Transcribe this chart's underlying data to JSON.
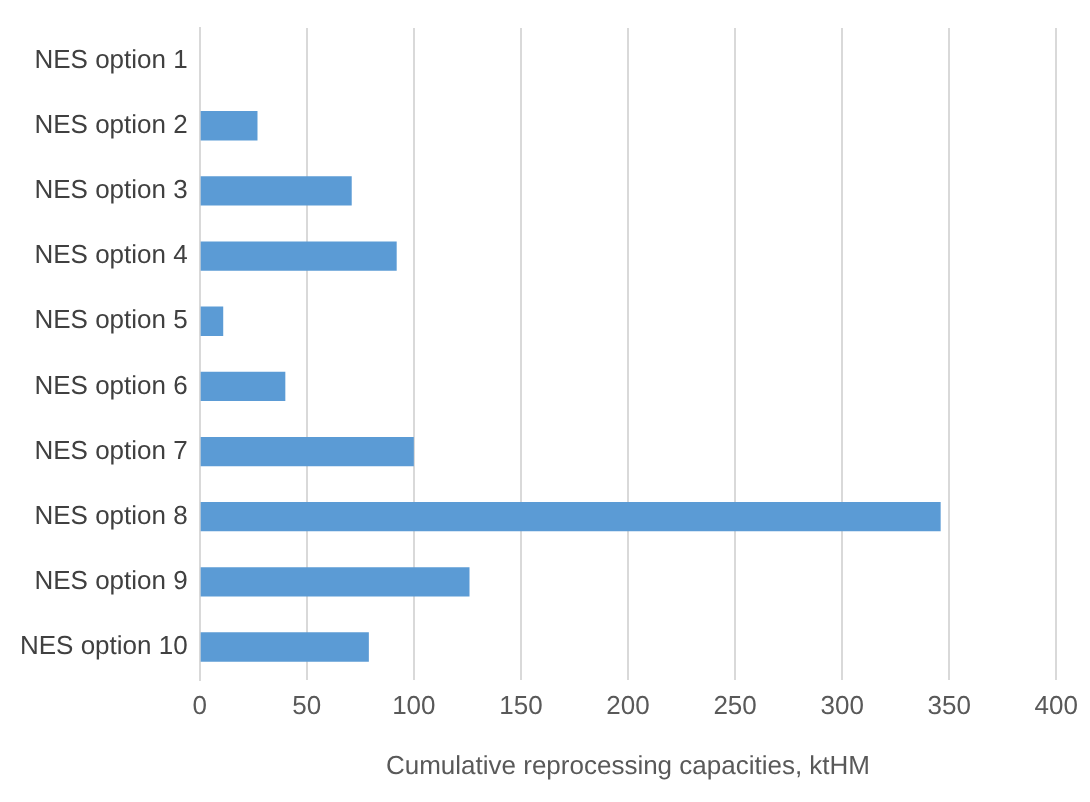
{
  "chart_data": {
    "type": "bar",
    "orientation": "horizontal",
    "xlabel": "Cumulative reprocessing capacities, ktHM",
    "categories": [
      "NES option 1",
      "NES option 2",
      "NES option 3",
      "NES option 4",
      "NES option 5",
      "NES option 6",
      "NES option 7",
      "NES option 8",
      "NES option 9",
      "NES option 10"
    ],
    "values": [
      0,
      27,
      71,
      92,
      11,
      40,
      100,
      346,
      126,
      79
    ],
    "color": "#5b9bd5",
    "xlim": [
      0,
      400
    ],
    "xticks": [
      0,
      50,
      100,
      150,
      200,
      250,
      300,
      350,
      400
    ],
    "grid": "x",
    "legend": false
  }
}
